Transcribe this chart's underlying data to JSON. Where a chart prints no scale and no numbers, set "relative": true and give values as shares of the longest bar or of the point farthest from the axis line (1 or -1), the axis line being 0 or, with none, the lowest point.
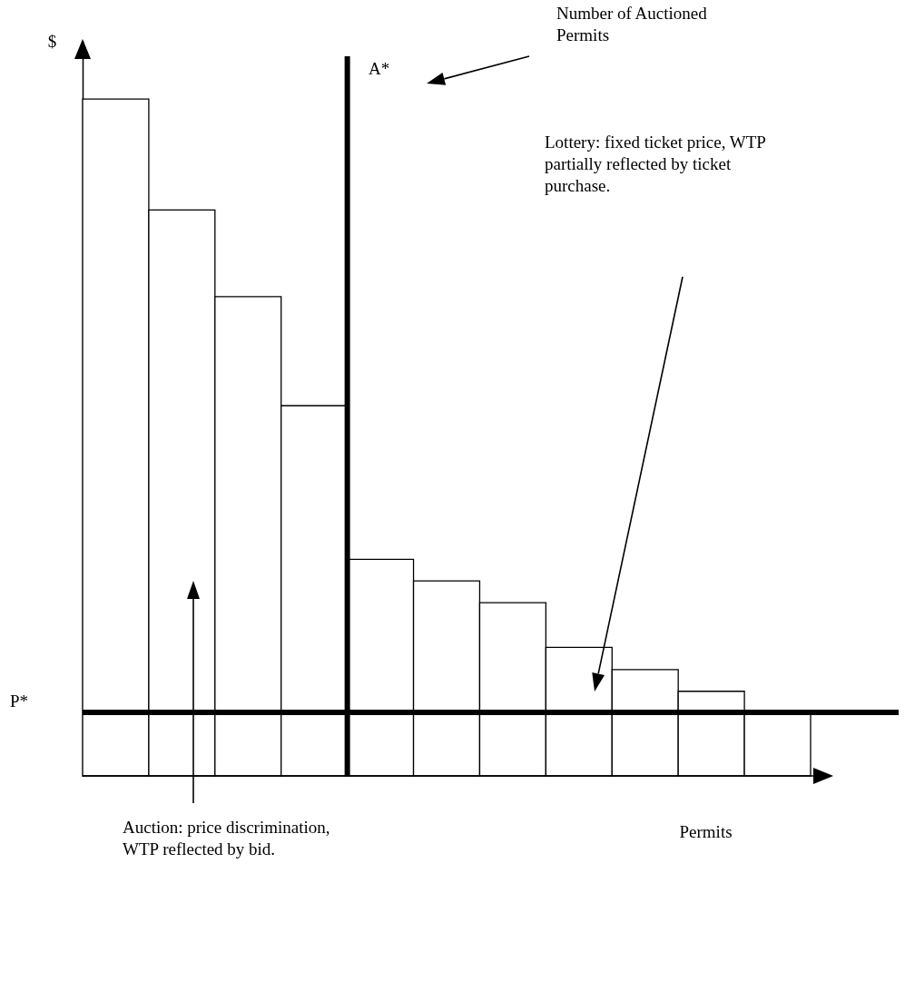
{
  "chart_data": {
    "type": "bar",
    "relative": true,
    "xlabel": "Permits",
    "ylabel": "$",
    "tick_labels": false,
    "grid": false,
    "categories": [
      null,
      null,
      null,
      null,
      null,
      null,
      null,
      null,
      null,
      null,
      null
    ],
    "values": [
      1,
      0.836,
      0.708,
      0.547,
      0.32,
      0.288,
      0.256,
      0.19,
      0.157,
      0.125,
      0.094
    ],
    "color": "#ffffff",
    "ref_lines": [
      {
        "axis": "y",
        "value": 0.094,
        "label": "P*",
        "color": "#000000"
      }
    ],
    "annotations": [
      "A*",
      "Number of Auctioned Permits",
      "Lottery: fixed ticket price, WTP partially reflected by ticket purchase.",
      "Auction: price discrimination, WTP reflected by bid."
    ]
  }
}
